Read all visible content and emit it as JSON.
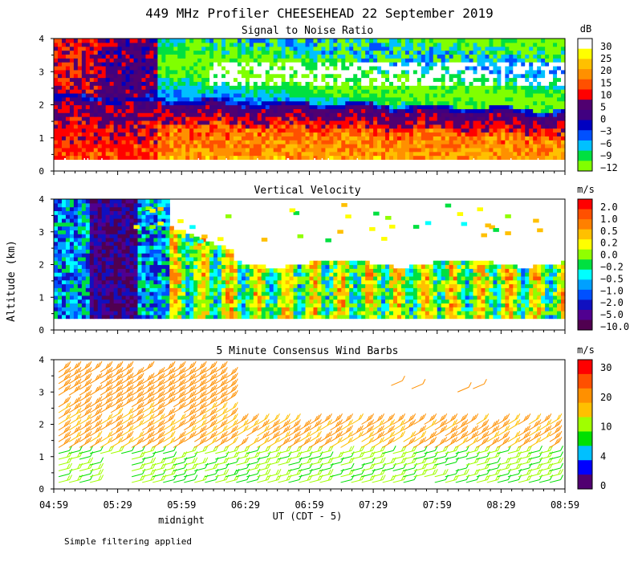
{
  "title": "449 MHz Profiler CHEESEHEAD 22 September 2019",
  "y_axis_label": "Altitude (km)",
  "x_axis_label": "UT  (CDT - 5)",
  "midnight_label": "midnight",
  "footnote": "Simple filtering applied",
  "colors": {
    "snr": [
      "#80ff00",
      "#00e040",
      "#00c0ff",
      "#0050ff",
      "#0000c0",
      "#400080",
      "#500070",
      "#ff0000",
      "#ff5000",
      "#ff9000",
      "#ffc000",
      "#ffff00",
      "#ffffff"
    ],
    "vel": [
      "#500050",
      "#500090",
      "#1010c0",
      "#0050ff",
      "#00a0ff",
      "#00ffff",
      "#00e040",
      "#90ff00",
      "#ffff00",
      "#ffc000",
      "#ff8000",
      "#ff5000",
      "#ff0000"
    ],
    "wind": [
      "#500070",
      "#0000ff",
      "#00c0ff",
      "#00e000",
      "#a0ff00",
      "#ffc000",
      "#ff9000",
      "#ff5000",
      "#ff0000"
    ]
  },
  "chart_data": [
    {
      "type": "heatmap",
      "title": "Signal to Noise Ratio",
      "xlabel": "UT (CDT - 5)",
      "ylabel": "Altitude (km)",
      "ylim": [
        0,
        4
      ],
      "yticks": [
        "0",
        "1",
        "2",
        "3",
        "4"
      ],
      "xticks": [
        "04:59",
        "05:29",
        "05:59",
        "06:29",
        "06:59",
        "07:29",
        "07:59",
        "08:29",
        "08:59"
      ],
      "colorbar_unit": "dB",
      "colorbar_labels": [
        "30",
        "25",
        "20",
        "15",
        "10",
        "5",
        "0",
        "−3",
        "−6",
        "−9",
        "−12"
      ]
    },
    {
      "type": "heatmap",
      "title": "Vertical Velocity",
      "xlabel": "UT (CDT - 5)",
      "ylabel": "Altitude (km)",
      "ylim": [
        0,
        4
      ],
      "yticks": [
        "0",
        "1",
        "2",
        "3",
        "4"
      ],
      "xticks": [
        "04:59",
        "05:29",
        "05:59",
        "06:29",
        "06:59",
        "07:29",
        "07:59",
        "08:29",
        "08:59"
      ],
      "colorbar_unit": "m/s",
      "colorbar_labels": [
        "2.0",
        "1.0",
        "0.5",
        "0.2",
        "0.0",
        "−0.2",
        "−0.5",
        "−1.0",
        "−2.0",
        "−5.0",
        "−10.0"
      ]
    },
    {
      "type": "scatter",
      "title": "5 Minute Consensus Wind Barbs",
      "xlabel": "UT (CDT - 5)",
      "ylabel": "Altitude (km)",
      "ylim": [
        0,
        4
      ],
      "yticks": [
        "0",
        "1",
        "2",
        "3",
        "4"
      ],
      "xticks": [
        "04:59",
        "05:29",
        "05:59",
        "06:29",
        "06:59",
        "07:29",
        "07:59",
        "08:29",
        "08:59"
      ],
      "colorbar_unit": "m/s",
      "colorbar_labels": [
        "30",
        "20",
        "10",
        "4",
        "0"
      ]
    }
  ]
}
